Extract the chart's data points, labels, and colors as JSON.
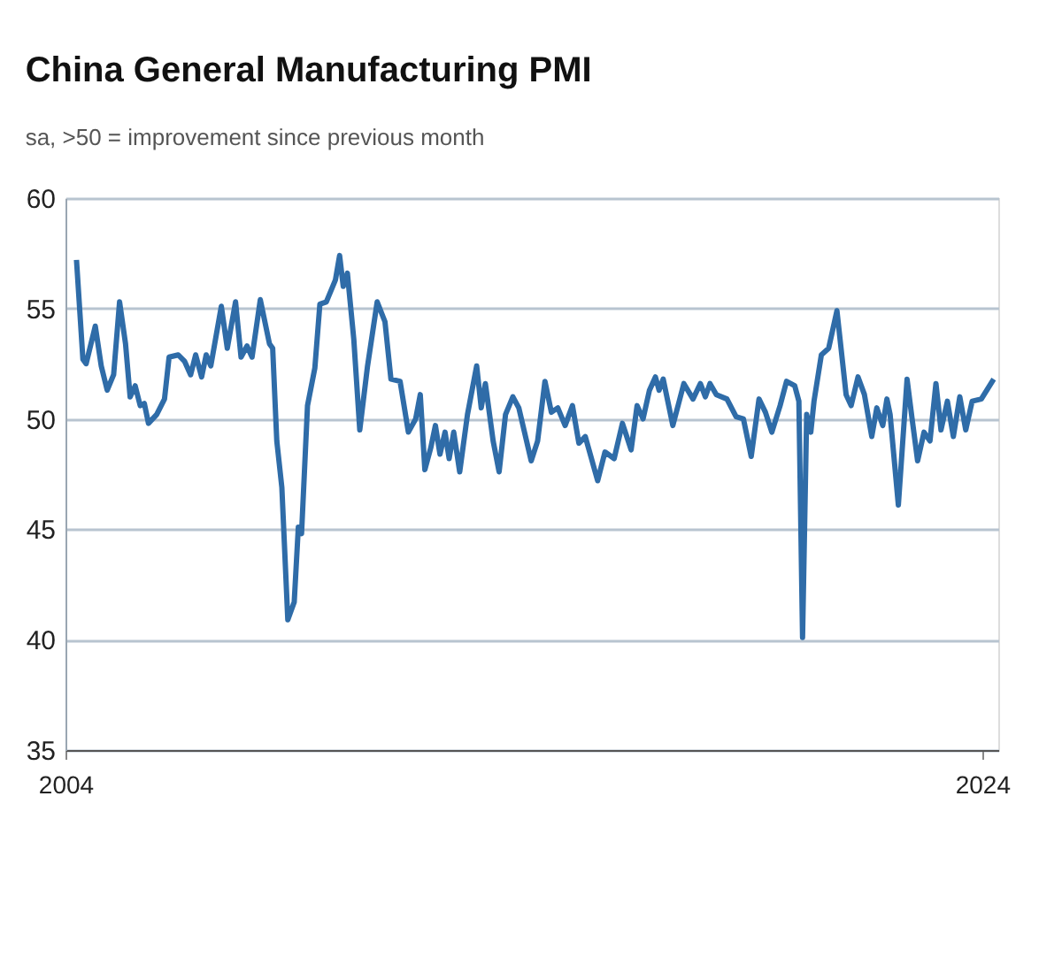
{
  "chart_data": {
    "type": "line",
    "title": "China General Manufacturing PMI",
    "subtitle": "sa, >50 = improvement since previous month",
    "x": [
      2004.24,
      2004.38,
      2004.45,
      2004.65,
      2004.78,
      2004.91,
      2005.05,
      2005.18,
      2005.31,
      2005.41,
      2005.52,
      2005.63,
      2005.72,
      2005.81,
      2005.99,
      2006.16,
      2006.26,
      2006.46,
      2006.6,
      2006.73,
      2006.84,
      2006.97,
      2007.07,
      2007.17,
      2007.4,
      2007.53,
      2007.71,
      2007.83,
      2007.96,
      2008.07,
      2008.25,
      2008.45,
      2008.52,
      2008.61,
      2008.72,
      2008.85,
      2008.99,
      2009.08,
      2009.15,
      2009.28,
      2009.44,
      2009.55,
      2009.69,
      2009.89,
      2009.98,
      2010.06,
      2010.15,
      2010.29,
      2010.42,
      2010.59,
      2010.8,
      2010.97,
      2011.1,
      2011.3,
      2011.48,
      2011.64,
      2011.74,
      2011.84,
      2011.97,
      2012.07,
      2012.17,
      2012.28,
      2012.37,
      2012.47,
      2012.6,
      2012.77,
      2012.97,
      2013.07,
      2013.16,
      2013.33,
      2013.46,
      2013.6,
      2013.76,
      2013.89,
      2014.16,
      2014.3,
      2014.46,
      2014.6,
      2014.74,
      2014.9,
      2015.06,
      2015.2,
      2015.34,
      2015.61,
      2015.77,
      2015.97,
      2016.15,
      2016.34,
      2016.47,
      2016.6,
      2016.74,
      2016.87,
      2016.95,
      2017.04,
      2017.25,
      2017.49,
      2017.69,
      2017.85,
      2017.96,
      2018.06,
      2018.2,
      2018.43,
      2018.63,
      2018.79,
      2018.96,
      2019.13,
      2019.27,
      2019.41,
      2019.59,
      2019.73,
      2019.91,
      2020.0,
      2020.08,
      2020.17,
      2020.26,
      2020.33,
      2020.49,
      2020.65,
      2020.83,
      2021.03,
      2021.14,
      2021.29,
      2021.43,
      2021.59,
      2021.7,
      2021.83,
      2021.92,
      2021.99,
      2022.17,
      2022.36,
      2022.47,
      2022.59,
      2022.73,
      2022.86,
      2022.99,
      2023.1,
      2023.24,
      2023.37,
      2023.51,
      2023.64,
      2023.78,
      2023.98,
      2024.25
    ],
    "values": [
      57.2,
      52.7,
      52.5,
      54.2,
      52.4,
      51.3,
      52.0,
      55.3,
      53.4,
      51.0,
      51.5,
      50.6,
      50.7,
      49.8,
      50.2,
      50.9,
      52.8,
      52.9,
      52.6,
      52.0,
      52.9,
      51.9,
      52.9,
      52.4,
      55.1,
      53.2,
      55.3,
      52.8,
      53.3,
      52.8,
      55.4,
      53.4,
      53.2,
      49.0,
      46.9,
      40.9,
      41.7,
      45.1,
      44.8,
      50.6,
      52.3,
      55.2,
      55.3,
      56.3,
      57.4,
      56.0,
      56.6,
      53.6,
      49.5,
      52.4,
      55.3,
      54.4,
      51.8,
      51.7,
      49.4,
      50.0,
      51.1,
      47.7,
      48.7,
      49.7,
      48.4,
      49.4,
      48.2,
      49.4,
      47.6,
      50.2,
      52.4,
      50.5,
      51.6,
      49.0,
      47.6,
      50.2,
      51.0,
      50.5,
      48.1,
      49.0,
      51.7,
      50.3,
      50.5,
      49.7,
      50.6,
      48.9,
      49.2,
      47.2,
      48.5,
      48.2,
      49.8,
      48.6,
      50.6,
      50.0,
      51.3,
      51.9,
      51.3,
      51.8,
      49.7,
      51.6,
      50.9,
      51.6,
      51.0,
      51.6,
      51.1,
      50.9,
      50.1,
      50.0,
      48.3,
      50.9,
      50.3,
      49.4,
      50.6,
      51.7,
      51.5,
      50.8,
      40.1,
      50.2,
      49.4,
      50.8,
      52.9,
      53.2,
      54.9,
      51.1,
      50.6,
      51.9,
      51.1,
      49.2,
      50.5,
      49.7,
      50.9,
      50.2,
      46.1,
      51.8,
      50.0,
      48.1,
      49.4,
      49.0,
      51.6,
      49.5,
      50.8,
      49.2,
      51.0,
      49.5,
      50.8,
      50.9,
      51.8
    ],
    "color": "#2f6ca8",
    "xlim": [
      2004,
      2024.35
    ],
    "xticks": [
      2004,
      2024
    ],
    "ylim": [
      35,
      60
    ],
    "yticks": [
      35,
      40,
      45,
      50,
      55,
      60
    ],
    "grid": "y"
  }
}
